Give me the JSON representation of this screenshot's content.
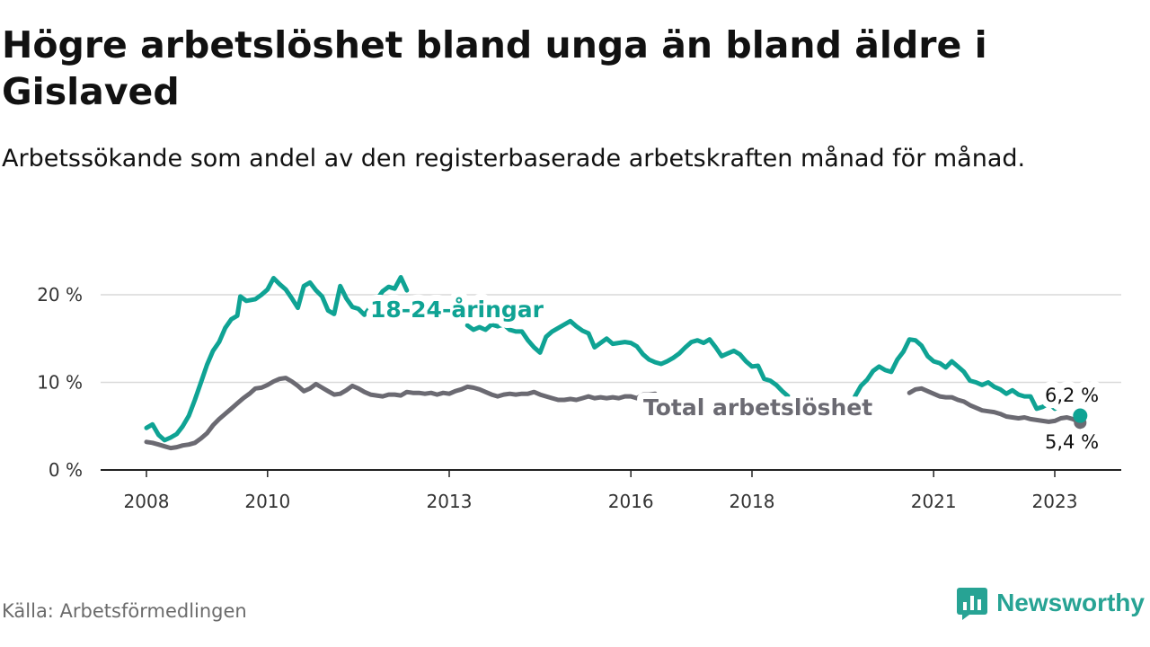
{
  "header": {
    "title": "Högre arbetslöshet bland unga än bland äldre i Gislaved",
    "subtitle": "Arbetssökande som andel av den registerbaserade arbetskraften månad för månad."
  },
  "footer": {
    "source": "Källa: Arbetsförmedlingen",
    "brand": "Newsworthy"
  },
  "colors": {
    "youth": "#0fa394",
    "total": "#6b6a72",
    "grid": "#d9d9d9",
    "axis": "#222222"
  },
  "chart_data": {
    "type": "line",
    "title": "Högre arbetslöshet bland unga än bland äldre i Gislaved",
    "xlabel": "",
    "ylabel": "",
    "xlim": [
      2008,
      2023.6
    ],
    "ylim": [
      0,
      22
    ],
    "y_ticks": [
      {
        "value": 0,
        "label": "0 %"
      },
      {
        "value": 10,
        "label": "10 %"
      },
      {
        "value": 20,
        "label": "20 %"
      }
    ],
    "x_ticks": [
      {
        "value": 2008,
        "label": "2008"
      },
      {
        "value": 2010,
        "label": "2010"
      },
      {
        "value": 2013,
        "label": "2013"
      },
      {
        "value": 2016,
        "label": "2016"
      },
      {
        "value": 2018,
        "label": "2018"
      },
      {
        "value": 2021,
        "label": "2021"
      },
      {
        "value": 2023,
        "label": "2023"
      }
    ],
    "series": [
      {
        "name": "18-24-åringar",
        "label": "18-24-åringar",
        "end_label": "6,2 %",
        "points": [
          [
            2008.0,
            4.8
          ],
          [
            2008.1,
            5.2
          ],
          [
            2008.2,
            4.0
          ],
          [
            2008.3,
            3.4
          ],
          [
            2008.4,
            3.7
          ],
          [
            2008.5,
            4.1
          ],
          [
            2008.6,
            5.0
          ],
          [
            2008.7,
            6.2
          ],
          [
            2008.8,
            8.0
          ],
          [
            2008.9,
            10.0
          ],
          [
            2009.0,
            12.0
          ],
          [
            2009.1,
            13.6
          ],
          [
            2009.2,
            14.6
          ],
          [
            2009.3,
            16.2
          ],
          [
            2009.4,
            17.2
          ],
          [
            2009.5,
            17.6
          ],
          [
            2009.55,
            19.8
          ],
          [
            2009.65,
            19.3
          ],
          [
            2009.8,
            19.5
          ],
          [
            2009.9,
            20.0
          ],
          [
            2010.0,
            20.6
          ],
          [
            2010.1,
            21.9
          ],
          [
            2010.2,
            21.2
          ],
          [
            2010.3,
            20.6
          ],
          [
            2010.4,
            19.6
          ],
          [
            2010.5,
            18.5
          ],
          [
            2010.6,
            21.0
          ],
          [
            2010.7,
            21.4
          ],
          [
            2010.8,
            20.5
          ],
          [
            2010.9,
            19.8
          ],
          [
            2011.0,
            18.2
          ],
          [
            2011.1,
            17.8
          ],
          [
            2011.2,
            21.0
          ],
          [
            2011.3,
            19.6
          ],
          [
            2011.4,
            18.6
          ],
          [
            2011.5,
            18.4
          ],
          [
            2011.6,
            17.7
          ],
          [
            2011.7,
            18.6
          ],
          [
            2011.8,
            19.4
          ],
          [
            2011.9,
            20.4
          ],
          [
            2012.0,
            20.9
          ],
          [
            2012.1,
            20.7
          ],
          [
            2012.2,
            22.0
          ],
          [
            2012.3,
            20.5
          ]
        ],
        "points_mid": [
          [
            2013.3,
            16.5
          ],
          [
            2013.4,
            16.0
          ],
          [
            2013.5,
            16.3
          ],
          [
            2013.6,
            16.0
          ],
          [
            2013.7,
            16.6
          ],
          [
            2013.8,
            16.4
          ],
          [
            2013.9,
            16.6
          ],
          [
            2014.0,
            16.0
          ],
          [
            2014.1,
            15.8
          ],
          [
            2014.2,
            15.8
          ],
          [
            2014.3,
            14.8
          ],
          [
            2014.4,
            14.0
          ],
          [
            2014.5,
            13.4
          ],
          [
            2014.6,
            15.2
          ],
          [
            2014.7,
            15.8
          ],
          [
            2014.8,
            16.2
          ],
          [
            2014.9,
            16.6
          ],
          [
            2015.0,
            17.0
          ],
          [
            2015.1,
            16.4
          ],
          [
            2015.2,
            15.9
          ],
          [
            2015.3,
            15.6
          ],
          [
            2015.4,
            14.0
          ],
          [
            2015.5,
            14.5
          ],
          [
            2015.6,
            15.0
          ],
          [
            2015.7,
            14.4
          ],
          [
            2015.8,
            14.5
          ],
          [
            2015.9,
            14.6
          ],
          [
            2016.0,
            14.5
          ],
          [
            2016.1,
            14.1
          ],
          [
            2016.2,
            13.2
          ],
          [
            2016.3,
            12.6
          ],
          [
            2016.4,
            12.3
          ],
          [
            2016.5,
            12.1
          ],
          [
            2016.6,
            12.4
          ],
          [
            2016.7,
            12.8
          ],
          [
            2016.8,
            13.3
          ],
          [
            2016.9,
            14.0
          ],
          [
            2017.0,
            14.6
          ],
          [
            2017.1,
            14.8
          ],
          [
            2017.2,
            14.5
          ],
          [
            2017.3,
            14.9
          ],
          [
            2017.4,
            14.0
          ],
          [
            2017.5,
            13.0
          ],
          [
            2017.6,
            13.3
          ],
          [
            2017.7,
            13.6
          ],
          [
            2017.8,
            13.2
          ],
          [
            2017.9,
            12.4
          ],
          [
            2018.0,
            11.8
          ],
          [
            2018.1,
            11.9
          ],
          [
            2018.2,
            10.4
          ],
          [
            2018.3,
            10.2
          ],
          [
            2018.4,
            9.7
          ],
          [
            2018.5,
            9.0
          ],
          [
            2018.6,
            8.4
          ]
        ],
        "points_late": [
          [
            2019.7,
            8.4
          ],
          [
            2019.8,
            9.6
          ],
          [
            2019.9,
            10.3
          ],
          [
            2020.0,
            11.3
          ],
          [
            2020.1,
            11.8
          ],
          [
            2020.2,
            11.4
          ],
          [
            2020.3,
            11.2
          ],
          [
            2020.4,
            12.6
          ],
          [
            2020.5,
            13.5
          ],
          [
            2020.6,
            14.9
          ],
          [
            2020.7,
            14.8
          ],
          [
            2020.8,
            14.2
          ],
          [
            2020.9,
            13.0
          ],
          [
            2021.0,
            12.4
          ],
          [
            2021.1,
            12.2
          ],
          [
            2021.2,
            11.7
          ],
          [
            2021.3,
            12.4
          ],
          [
            2021.4,
            11.8
          ],
          [
            2021.5,
            11.2
          ],
          [
            2021.6,
            10.2
          ],
          [
            2021.7,
            10.0
          ],
          [
            2021.8,
            9.7
          ],
          [
            2021.9,
            10.0
          ],
          [
            2022.0,
            9.5
          ],
          [
            2022.1,
            9.2
          ],
          [
            2022.2,
            8.7
          ],
          [
            2022.3,
            9.1
          ],
          [
            2022.4,
            8.6
          ],
          [
            2022.5,
            8.4
          ],
          [
            2022.6,
            8.4
          ],
          [
            2022.7,
            7.0
          ],
          [
            2022.8,
            7.2
          ],
          [
            2022.9,
            7.6
          ],
          [
            2023.0,
            7.0
          ],
          [
            2023.1,
            7.3
          ],
          [
            2023.2,
            7.9
          ],
          [
            2023.3,
            8.5
          ]
        ],
        "points_end": [
          [
            2023.35,
            6.5
          ],
          [
            2023.42,
            6.2
          ]
        ],
        "last": [
          2023.42,
          6.2
        ]
      },
      {
        "name": "Total arbetslöshet",
        "label": "Total arbetslöshet",
        "end_label": "5,4 %",
        "points": [
          [
            2008.0,
            3.2
          ],
          [
            2008.1,
            3.1
          ],
          [
            2008.2,
            2.9
          ],
          [
            2008.3,
            2.7
          ],
          [
            2008.4,
            2.5
          ],
          [
            2008.5,
            2.6
          ],
          [
            2008.6,
            2.8
          ],
          [
            2008.7,
            2.9
          ],
          [
            2008.8,
            3.1
          ],
          [
            2008.9,
            3.6
          ],
          [
            2009.0,
            4.2
          ],
          [
            2009.1,
            5.1
          ],
          [
            2009.2,
            5.8
          ],
          [
            2009.3,
            6.4
          ],
          [
            2009.4,
            7.0
          ],
          [
            2009.5,
            7.6
          ],
          [
            2009.6,
            8.2
          ],
          [
            2009.7,
            8.7
          ],
          [
            2009.8,
            9.3
          ],
          [
            2009.9,
            9.4
          ],
          [
            2010.0,
            9.7
          ],
          [
            2010.1,
            10.1
          ],
          [
            2010.2,
            10.4
          ],
          [
            2010.3,
            10.5
          ],
          [
            2010.4,
            10.1
          ],
          [
            2010.5,
            9.6
          ],
          [
            2010.6,
            9.0
          ],
          [
            2010.7,
            9.3
          ],
          [
            2010.8,
            9.8
          ],
          [
            2010.9,
            9.4
          ],
          [
            2011.0,
            9.0
          ],
          [
            2011.1,
            8.6
          ],
          [
            2011.2,
            8.7
          ],
          [
            2011.3,
            9.1
          ],
          [
            2011.4,
            9.6
          ],
          [
            2011.5,
            9.3
          ],
          [
            2011.6,
            8.9
          ],
          [
            2011.7,
            8.6
          ],
          [
            2011.8,
            8.5
          ],
          [
            2011.9,
            8.4
          ],
          [
            2012.0,
            8.6
          ],
          [
            2012.1,
            8.6
          ],
          [
            2012.2,
            8.5
          ],
          [
            2012.3,
            8.9
          ],
          [
            2012.4,
            8.8
          ],
          [
            2012.5,
            8.8
          ],
          [
            2012.6,
            8.7
          ],
          [
            2012.7,
            8.8
          ],
          [
            2012.8,
            8.6
          ],
          [
            2012.9,
            8.8
          ],
          [
            2013.0,
            8.7
          ],
          [
            2013.1,
            9.0
          ],
          [
            2013.2,
            9.2
          ],
          [
            2013.3,
            9.5
          ],
          [
            2013.4,
            9.4
          ],
          [
            2013.5,
            9.2
          ],
          [
            2013.6,
            8.9
          ],
          [
            2013.7,
            8.6
          ],
          [
            2013.8,
            8.4
          ],
          [
            2013.9,
            8.6
          ],
          [
            2014.0,
            8.7
          ],
          [
            2014.1,
            8.6
          ],
          [
            2014.2,
            8.7
          ],
          [
            2014.3,
            8.7
          ],
          [
            2014.4,
            8.9
          ],
          [
            2014.5,
            8.6
          ],
          [
            2014.6,
            8.4
          ],
          [
            2014.7,
            8.2
          ],
          [
            2014.8,
            8.0
          ],
          [
            2014.9,
            8.0
          ],
          [
            2015.0,
            8.1
          ],
          [
            2015.1,
            8.0
          ],
          [
            2015.2,
            8.2
          ],
          [
            2015.3,
            8.4
          ],
          [
            2015.4,
            8.2
          ],
          [
            2015.5,
            8.3
          ],
          [
            2015.6,
            8.2
          ],
          [
            2015.7,
            8.3
          ],
          [
            2015.8,
            8.2
          ],
          [
            2015.9,
            8.4
          ],
          [
            2016.0,
            8.4
          ],
          [
            2016.1,
            8.2
          ],
          [
            2016.2,
            8.6
          ],
          [
            2016.3,
            8.6
          ],
          [
            2016.4,
            8.7
          ]
        ],
        "points_late": [
          [
            2020.6,
            8.8
          ],
          [
            2020.7,
            9.2
          ],
          [
            2020.8,
            9.3
          ],
          [
            2020.9,
            9.0
          ],
          [
            2021.0,
            8.7
          ],
          [
            2021.1,
            8.4
          ],
          [
            2021.2,
            8.3
          ],
          [
            2021.3,
            8.3
          ],
          [
            2021.4,
            8.0
          ],
          [
            2021.5,
            7.8
          ],
          [
            2021.6,
            7.4
          ],
          [
            2021.7,
            7.1
          ],
          [
            2021.8,
            6.8
          ],
          [
            2021.9,
            6.7
          ],
          [
            2022.0,
            6.6
          ],
          [
            2022.1,
            6.4
          ],
          [
            2022.2,
            6.1
          ],
          [
            2022.3,
            6.0
          ],
          [
            2022.4,
            5.9
          ],
          [
            2022.5,
            6.0
          ],
          [
            2022.6,
            5.8
          ],
          [
            2022.7,
            5.7
          ],
          [
            2022.8,
            5.6
          ],
          [
            2022.9,
            5.5
          ],
          [
            2023.0,
            5.6
          ],
          [
            2023.1,
            5.9
          ],
          [
            2023.2,
            6.0
          ],
          [
            2023.3,
            5.8
          ],
          [
            2023.42,
            5.4
          ]
        ],
        "last": [
          2023.42,
          5.4
        ]
      }
    ]
  }
}
